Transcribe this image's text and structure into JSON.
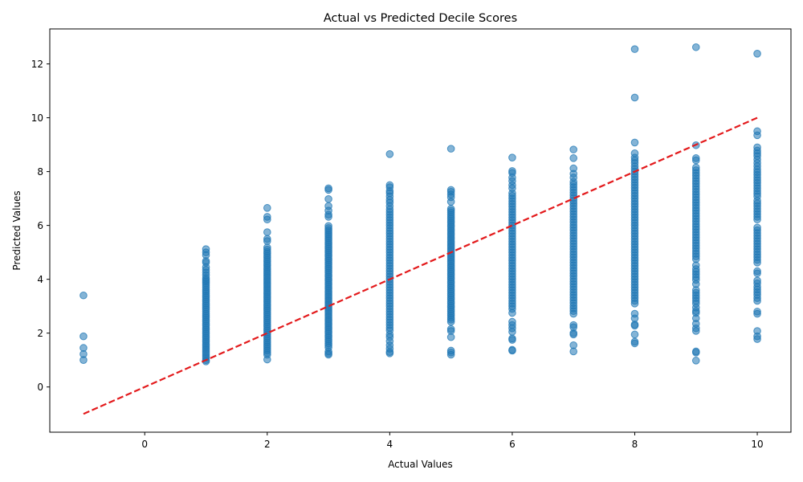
{
  "chart_data": {
    "type": "scatter",
    "title": "Actual vs Predicted Decile Scores",
    "xlabel": "Actual Values",
    "ylabel": "Predicted Values",
    "xlim": [
      -1.55,
      10.55
    ],
    "ylim": [
      -1.68,
      13.3
    ],
    "xticks": [
      0,
      2,
      4,
      6,
      8,
      10
    ],
    "yticks": [
      0,
      2,
      4,
      6,
      8,
      10,
      12
    ],
    "grid": false,
    "legend": "none",
    "colors": {
      "points": "#1f77b4",
      "reference": "#e31a1c"
    },
    "reference_line": {
      "x": [
        -1,
        10
      ],
      "y": [
        -1,
        10
      ],
      "style": "dashed"
    },
    "columns": [
      {
        "x": -1,
        "y": [
          3.4,
          1.88,
          1.45,
          1.22,
          1.0
        ]
      },
      {
        "x": 1,
        "y": [
          5.12,
          5.0,
          4.9,
          4.68,
          4.62,
          4.45,
          4.35,
          4.25,
          4.15,
          4.05,
          3.98,
          3.92,
          3.85,
          3.78,
          3.7,
          3.62,
          3.55,
          3.48,
          3.4,
          3.33,
          3.25,
          3.18,
          3.1,
          3.03,
          2.95,
          2.88,
          2.8,
          2.72,
          2.65,
          2.58,
          2.5,
          2.43,
          2.35,
          2.28,
          2.2,
          2.13,
          2.05,
          1.98,
          1.9,
          1.83,
          1.75,
          1.68,
          1.6,
          1.53,
          1.45,
          1.38,
          1.3,
          1.23,
          1.15,
          1.08,
          1.0,
          0.95
        ]
      },
      {
        "x": 2,
        "y": [
          6.65,
          6.32,
          6.22,
          5.75,
          5.5,
          5.42,
          5.18,
          5.1,
          5.02,
          4.95,
          4.87,
          4.8,
          4.72,
          4.65,
          4.57,
          4.5,
          4.42,
          4.35,
          4.27,
          4.2,
          4.12,
          4.05,
          3.97,
          3.9,
          3.82,
          3.75,
          3.67,
          3.6,
          3.52,
          3.45,
          3.37,
          3.3,
          3.22,
          3.15,
          3.07,
          3.0,
          2.92,
          2.85,
          2.77,
          2.7,
          2.62,
          2.55,
          2.47,
          2.4,
          2.32,
          2.25,
          2.17,
          2.1,
          2.02,
          1.95,
          1.87,
          1.8,
          1.72,
          1.65,
          1.57,
          1.5,
          1.42,
          1.35,
          1.27,
          1.2,
          1.02
        ]
      },
      {
        "x": 3,
        "y": [
          7.38,
          7.32,
          6.98,
          6.72,
          6.55,
          6.4,
          6.32,
          5.98,
          5.9,
          5.82,
          5.75,
          5.67,
          5.6,
          5.52,
          5.45,
          5.37,
          5.3,
          5.22,
          5.15,
          5.07,
          5.0,
          4.92,
          4.85,
          4.77,
          4.7,
          4.62,
          4.55,
          4.47,
          4.4,
          4.32,
          4.25,
          4.17,
          4.1,
          4.02,
          3.95,
          3.87,
          3.8,
          3.72,
          3.65,
          3.57,
          3.5,
          3.42,
          3.35,
          3.27,
          3.2,
          3.12,
          3.05,
          2.97,
          2.9,
          2.82,
          2.75,
          2.67,
          2.6,
          2.52,
          2.45,
          2.37,
          2.3,
          2.22,
          2.15,
          2.07,
          2.0,
          1.92,
          1.85,
          1.77,
          1.7,
          1.62,
          1.55,
          1.47,
          1.32,
          1.25,
          1.2
        ]
      },
      {
        "x": 4,
        "y": [
          8.65,
          7.5,
          7.42,
          7.28,
          7.2,
          7.08,
          6.95,
          6.85,
          6.72,
          6.6,
          6.5,
          6.4,
          6.3,
          6.2,
          6.1,
          6.0,
          5.9,
          5.8,
          5.7,
          5.6,
          5.5,
          5.4,
          5.3,
          5.2,
          5.1,
          5.0,
          4.9,
          4.8,
          4.7,
          4.6,
          4.5,
          4.4,
          4.3,
          4.2,
          4.1,
          4.0,
          3.9,
          3.8,
          3.7,
          3.6,
          3.5,
          3.4,
          3.3,
          3.2,
          3.1,
          3.0,
          2.9,
          2.8,
          2.7,
          2.6,
          2.5,
          2.4,
          2.3,
          2.2,
          2.1,
          1.95,
          1.85,
          1.7,
          1.55,
          1.42,
          1.3,
          1.25
        ]
      },
      {
        "x": 5,
        "y": [
          8.85,
          7.32,
          7.25,
          7.15,
          7.05,
          6.88,
          6.62,
          6.55,
          6.48,
          6.4,
          6.32,
          6.25,
          6.17,
          6.1,
          6.02,
          5.95,
          5.87,
          5.8,
          5.72,
          5.65,
          5.57,
          5.5,
          5.42,
          5.35,
          5.27,
          5.2,
          5.12,
          5.05,
          4.97,
          4.9,
          4.82,
          4.75,
          4.67,
          4.6,
          4.52,
          4.45,
          4.37,
          4.3,
          4.22,
          4.15,
          4.07,
          4.0,
          3.92,
          3.85,
          3.77,
          3.7,
          3.62,
          3.55,
          3.47,
          3.4,
          3.32,
          3.25,
          3.17,
          3.1,
          3.02,
          2.95,
          2.87,
          2.8,
          2.72,
          2.65,
          2.57,
          2.5,
          2.42,
          2.15,
          2.08,
          1.85,
          1.35,
          1.28,
          1.2
        ]
      },
      {
        "x": 6,
        "y": [
          8.52,
          8.02,
          7.95,
          7.78,
          7.65,
          7.5,
          7.38,
          7.2,
          7.1,
          7.0,
          6.9,
          6.8,
          6.7,
          6.6,
          6.5,
          6.4,
          6.3,
          6.2,
          6.1,
          6.0,
          5.9,
          5.8,
          5.7,
          5.6,
          5.5,
          5.4,
          5.3,
          5.2,
          5.1,
          5.0,
          4.9,
          4.8,
          4.7,
          4.6,
          4.5,
          4.4,
          4.3,
          4.2,
          4.1,
          4.0,
          3.9,
          3.8,
          3.7,
          3.6,
          3.5,
          3.4,
          3.3,
          3.2,
          3.1,
          3.0,
          2.9,
          2.75,
          2.42,
          2.3,
          2.18,
          2.05,
          1.8,
          1.75,
          1.38,
          1.35
        ]
      },
      {
        "x": 7,
        "y": [
          8.82,
          8.5,
          8.12,
          7.92,
          7.78,
          7.62,
          7.52,
          7.42,
          7.32,
          7.22,
          7.12,
          7.02,
          6.92,
          6.82,
          6.72,
          6.62,
          6.52,
          6.42,
          6.32,
          6.22,
          6.12,
          6.02,
          5.92,
          5.82,
          5.72,
          5.62,
          5.52,
          5.42,
          5.32,
          5.22,
          5.12,
          5.02,
          4.92,
          4.82,
          4.72,
          4.62,
          4.52,
          4.42,
          4.32,
          4.22,
          4.12,
          4.02,
          3.92,
          3.82,
          3.72,
          3.62,
          3.52,
          3.42,
          3.32,
          3.22,
          3.12,
          3.02,
          2.92,
          2.82,
          2.72,
          2.3,
          2.22,
          2.0,
          1.95,
          1.55,
          1.32
        ]
      },
      {
        "x": 8,
        "y": [
          12.55,
          10.75,
          9.08,
          8.68,
          8.52,
          8.42,
          8.32,
          8.2,
          8.1,
          8.0,
          7.9,
          7.8,
          7.7,
          7.6,
          7.5,
          7.4,
          7.3,
          7.2,
          7.1,
          7.0,
          6.9,
          6.8,
          6.7,
          6.6,
          6.5,
          6.4,
          6.3,
          6.2,
          6.1,
          6.0,
          5.9,
          5.8,
          5.7,
          5.6,
          5.5,
          5.4,
          5.3,
          5.2,
          5.1,
          5.0,
          4.9,
          4.8,
          4.7,
          4.6,
          4.5,
          4.4,
          4.3,
          4.2,
          4.1,
          4.0,
          3.9,
          3.8,
          3.7,
          3.6,
          3.5,
          3.4,
          3.3,
          3.2,
          3.1,
          2.72,
          2.55,
          2.32,
          2.28,
          1.95,
          1.68,
          1.62
        ]
      },
      {
        "x": 9,
        "y": [
          12.62,
          8.98,
          8.5,
          8.42,
          8.15,
          8.05,
          7.95,
          7.85,
          7.75,
          7.65,
          7.55,
          7.45,
          7.35,
          7.25,
          7.15,
          7.05,
          6.95,
          6.85,
          6.75,
          6.65,
          6.55,
          6.45,
          6.35,
          6.25,
          6.15,
          6.05,
          5.95,
          5.85,
          5.75,
          5.65,
          5.55,
          5.45,
          5.35,
          5.25,
          5.15,
          5.05,
          4.95,
          4.85,
          4.75,
          4.52,
          4.38,
          4.28,
          4.18,
          4.08,
          3.98,
          3.82,
          3.6,
          3.5,
          3.4,
          3.3,
          3.2,
          3.1,
          2.95,
          2.82,
          2.75,
          2.55,
          2.35,
          2.18,
          2.08,
          1.32,
          1.28,
          0.98
        ]
      },
      {
        "x": 10,
        "y": [
          12.38,
          9.5,
          9.35,
          8.9,
          8.78,
          8.68,
          8.58,
          8.45,
          8.32,
          8.2,
          8.08,
          7.98,
          7.88,
          7.78,
          7.68,
          7.58,
          7.48,
          7.38,
          7.28,
          7.18,
          7.08,
          6.92,
          6.82,
          6.72,
          6.62,
          6.52,
          6.42,
          6.32,
          6.22,
          5.92,
          5.82,
          5.72,
          5.62,
          5.52,
          5.42,
          5.32,
          5.22,
          5.12,
          5.02,
          4.92,
          4.82,
          4.72,
          4.62,
          4.3,
          4.22,
          3.95,
          3.85,
          3.72,
          3.62,
          3.52,
          3.42,
          3.3,
          3.2,
          2.8,
          2.72,
          2.08,
          1.88,
          1.78
        ]
      }
    ]
  }
}
